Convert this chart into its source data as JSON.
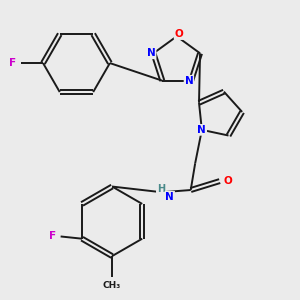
{
  "background_color": "#ebebeb",
  "bond_color": "#1a1a1a",
  "atom_colors": {
    "F": "#cc00cc",
    "N": "#0000ff",
    "O": "#ff0000",
    "H": "#4a8a8a",
    "C": "#1a1a1a"
  },
  "bond_lw": 1.4,
  "double_sep": 0.1
}
